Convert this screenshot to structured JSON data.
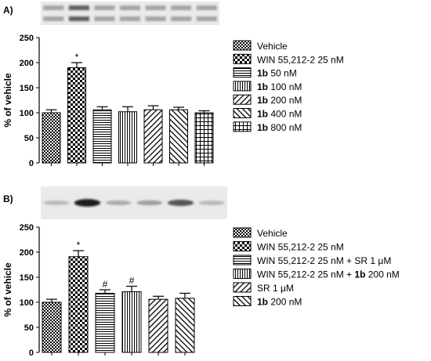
{
  "chart_data": [
    {
      "panel": "A)",
      "type": "bar",
      "ylabel": "% of vehicle",
      "ylim": [
        0,
        250
      ],
      "yticks": [
        "0",
        "50",
        "100",
        "150",
        "200",
        "250"
      ],
      "bars": [
        {
          "value": 100,
          "error": 6,
          "pattern": "checker",
          "sig": ""
        },
        {
          "value": 190,
          "error": 10,
          "pattern": "checker-large",
          "sig": "*"
        },
        {
          "value": 106,
          "error": 6,
          "pattern": "hlines",
          "sig": ""
        },
        {
          "value": 102,
          "error": 10,
          "pattern": "vlines",
          "sig": ""
        },
        {
          "value": 106,
          "error": 8,
          "pattern": "diag-right",
          "sig": ""
        },
        {
          "value": 106,
          "error": 5,
          "pattern": "diag-left",
          "sig": ""
        },
        {
          "value": 100,
          "error": 4,
          "pattern": "grid",
          "sig": ""
        }
      ],
      "legend": [
        {
          "pattern": "checker",
          "bold": "",
          "text": "Vehicle"
        },
        {
          "pattern": "checker-large",
          "bold": "",
          "text": "WIN 55,212-2  25 nM"
        },
        {
          "pattern": "hlines",
          "bold": "1b",
          "text": " 50 nM"
        },
        {
          "pattern": "vlines",
          "bold": "1b",
          "text": " 100 nM"
        },
        {
          "pattern": "diag-right",
          "bold": "1b",
          "text": " 200 nM"
        },
        {
          "pattern": "diag-left",
          "bold": "1b",
          "text": " 400 nM"
        },
        {
          "pattern": "grid",
          "bold": "1b",
          "text": " 800 nM"
        }
      ],
      "blot": {
        "bands": 7,
        "darkness": [
          0.45,
          0.8,
          0.45,
          0.45,
          0.45,
          0.45,
          0.45
        ]
      }
    },
    {
      "panel": "B)",
      "type": "bar",
      "ylabel": "% of vehicle",
      "ylim": [
        0,
        250
      ],
      "yticks": [
        "0",
        "50",
        "100",
        "150",
        "200",
        "250"
      ],
      "bars": [
        {
          "value": 100,
          "error": 6,
          "pattern": "checker",
          "sig": ""
        },
        {
          "value": 191,
          "error": 12,
          "pattern": "checker-large",
          "sig": "*"
        },
        {
          "value": 118,
          "error": 7,
          "pattern": "hlines",
          "sig": "#"
        },
        {
          "value": 121,
          "error": 11,
          "pattern": "vlines",
          "sig": "#"
        },
        {
          "value": 106,
          "error": 6,
          "pattern": "diag-right",
          "sig": ""
        },
        {
          "value": 108,
          "error": 10,
          "pattern": "diag-left",
          "sig": ""
        }
      ],
      "legend": [
        {
          "pattern": "checker",
          "bold": "",
          "text": "Vehicle",
          "suffix": "",
          "suffix_bold": ""
        },
        {
          "pattern": "checker-large",
          "bold": "",
          "text": "WIN 55,212-2  25 nM",
          "suffix": "",
          "suffix_bold": ""
        },
        {
          "pattern": "hlines",
          "bold": "",
          "text": "WIN 55,212-2  25 nM + SR 1 μM",
          "suffix": "",
          "suffix_bold": ""
        },
        {
          "pattern": "vlines",
          "bold": "",
          "text": "WIN 55,212-2  25 nM + ",
          "suffix_bold": "1b",
          "suffix": " 200 nM"
        },
        {
          "pattern": "diag-right",
          "bold": "",
          "text": "SR 1 μM",
          "suffix": "",
          "suffix_bold": ""
        },
        {
          "pattern": "diag-left",
          "bold": "1b",
          "text": " 200 nM",
          "suffix": "",
          "suffix_bold": ""
        }
      ],
      "blot": {
        "bands": 6,
        "darkness": [
          0.3,
          0.95,
          0.35,
          0.4,
          0.7,
          0.3
        ]
      }
    }
  ]
}
